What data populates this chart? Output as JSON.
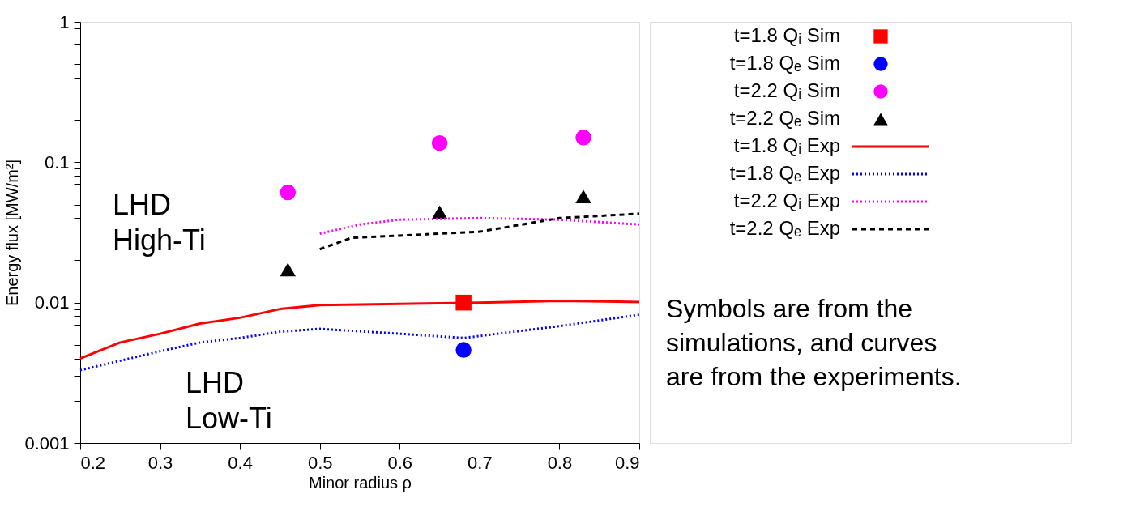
{
  "chart_data": {
    "type": "scatter",
    "xlabel": "Minor radius ρ",
    "ylabel": "Energy flux [MW/m²]",
    "xlim": [
      0.2,
      0.9
    ],
    "xticks": [
      0.2,
      0.3,
      0.4,
      0.5,
      0.6,
      0.7,
      0.8,
      0.9
    ],
    "ylim": [
      0.001,
      1
    ],
    "log": "y",
    "yticks": [
      0.001,
      {
        "value": 0.002,
        "label": null
      },
      {
        "value": 0.003,
        "label": null
      },
      {
        "value": 0.004,
        "label": null
      },
      {
        "value": 0.005,
        "label": null
      },
      {
        "value": 0.006,
        "label": null
      },
      {
        "value": 0.007,
        "label": null
      },
      {
        "value": 0.008,
        "label": null
      },
      {
        "value": 0.009,
        "label": null
      },
      0.01,
      {
        "value": 0.02,
        "label": null
      },
      {
        "value": 0.03,
        "label": null
      },
      {
        "value": 0.04,
        "label": null
      },
      {
        "value": 0.05,
        "label": null
      },
      {
        "value": 0.06,
        "label": null
      },
      {
        "value": 0.07,
        "label": null
      },
      {
        "value": 0.08,
        "label": null
      },
      {
        "value": 0.09,
        "label": null
      },
      0.1,
      {
        "value": 0.2,
        "label": null
      },
      {
        "value": 0.3,
        "label": null
      },
      {
        "value": 0.4,
        "label": null
      },
      {
        "value": 0.5,
        "label": null
      },
      {
        "value": 0.6,
        "label": null
      },
      {
        "value": 0.7,
        "label": null
      },
      {
        "value": 0.8,
        "label": null
      },
      {
        "value": 0.9,
        "label": null
      },
      1
    ],
    "grid": false,
    "legend": "right",
    "series": [
      {
        "name": "t=1.8 Qᵢ Sim",
        "marker": "square",
        "color": "#ff0000",
        "x": [
          0.68
        ],
        "values": [
          0.01
        ]
      },
      {
        "name": "t=1.8 Qₑ Sim",
        "marker": "circle",
        "color": "#0000ff",
        "x": [
          0.68
        ],
        "values": [
          0.0046
        ]
      },
      {
        "name": "t=2.2 Qᵢ Sim",
        "marker": "circle",
        "color": "#ff00ff",
        "x": [
          0.46,
          0.65,
          0.83
        ],
        "values": [
          0.061,
          0.137,
          0.15
        ]
      },
      {
        "name": "t=2.2 Qₑ Sim",
        "marker": "triangle",
        "color": "#000000",
        "x": [
          0.46,
          0.65,
          0.83
        ],
        "values": [
          0.0172,
          0.044,
          0.057
        ]
      },
      {
        "name": "t=1.8 Qᵢ Exp",
        "type": "line",
        "line_style": "solid",
        "color": "#ff0000",
        "x": [
          0.2,
          0.25,
          0.3,
          0.35,
          0.4,
          0.45,
          0.5,
          0.6,
          0.7,
          0.8,
          0.9
        ],
        "values": [
          0.004,
          0.0052,
          0.006,
          0.0071,
          0.0078,
          0.009,
          0.0096,
          0.0098,
          0.01,
          0.0103,
          0.0101
        ]
      },
      {
        "name": "t=1.8 Qₑ Exp",
        "type": "line",
        "line_style": "dotted",
        "color": "#0000ff",
        "x": [
          0.2,
          0.3,
          0.35,
          0.4,
          0.45,
          0.5,
          0.6,
          0.68,
          0.8,
          0.9
        ],
        "values": [
          0.0033,
          0.0045,
          0.0052,
          0.0056,
          0.0062,
          0.0065,
          0.006,
          0.0056,
          0.0068,
          0.0082
        ]
      },
      {
        "name": "t=2.2 Qᵢ Exp",
        "type": "line",
        "line_style": "dotted",
        "color": "#ff00ff",
        "x": [
          0.5,
          0.55,
          0.6,
          0.7,
          0.8,
          0.9
        ],
        "values": [
          0.031,
          0.036,
          0.039,
          0.04,
          0.039,
          0.036
        ]
      },
      {
        "name": "t=2.2 Qₑ Exp",
        "type": "line",
        "line_style": "dashed",
        "color": "#000000",
        "x": [
          0.5,
          0.54,
          0.6,
          0.65,
          0.7,
          0.8,
          0.9
        ],
        "values": [
          0.024,
          0.029,
          0.03,
          0.031,
          0.032,
          0.04,
          0.043
        ]
      }
    ],
    "annotations": [
      "LHD\nHigh-Ti",
      "LHD\nLow-Ti",
      "Symbols are from the\nsimulations, and curves\nare from the experiments."
    ]
  }
}
